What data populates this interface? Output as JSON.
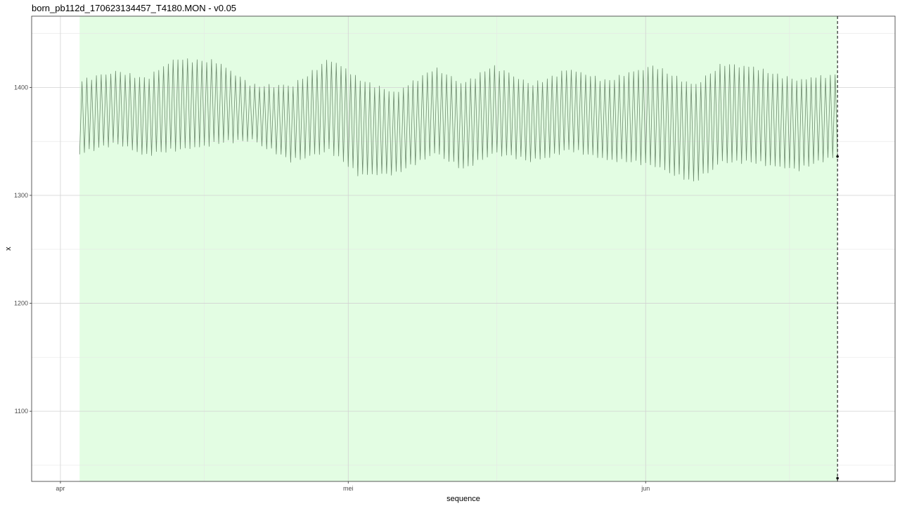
{
  "title": "born_pb112d_170623134457_T4180.MON - v0.05",
  "colors": {
    "panel_background": "#ffffff",
    "highlight_band": "#e3fde3",
    "grid_major": "#d2d2d2",
    "grid_minor": "#e6e6e6",
    "series_line": "#6e8a6e",
    "marker_line": "#000000"
  },
  "chart_data": {
    "type": "line",
    "title": "born_pb112d_170623134457_T4180.MON - v0.05",
    "xlabel": "sequence",
    "ylabel": "x",
    "x_axis": {
      "type": "date",
      "range": [
        "2017-03-29",
        "2017-06-27"
      ],
      "ticks": [
        {
          "date": "2017-04-01",
          "label": "apr"
        },
        {
          "date": "2017-05-01",
          "label": "mei"
        },
        {
          "date": "2017-06-01",
          "label": "jun"
        }
      ]
    },
    "y_axis": {
      "range": [
        1035,
        1466
      ],
      "ticks": [
        1100,
        1200,
        1300,
        1400
      ],
      "minor_ticks": [
        1050,
        1150,
        1250,
        1350,
        1450
      ]
    },
    "grid": true,
    "legend": "none",
    "highlight_band": {
      "start": "2017-04-03",
      "end": "2017-06-21"
    },
    "vertical_marker": {
      "date": "2017-06-21",
      "style": "dashed",
      "points_y": [
        1336,
        1038
      ]
    },
    "series": [
      {
        "color": "#6e8a6e",
        "cycles_per_day": 2,
        "start": "2017-04-03",
        "end": "2017-06-21",
        "envelope": {
          "dates": [
            "2017-04-03",
            "2017-04-07",
            "2017-04-10",
            "2017-04-13",
            "2017-04-17",
            "2017-04-21",
            "2017-04-25",
            "2017-04-29",
            "2017-05-02",
            "2017-05-06",
            "2017-05-10",
            "2017-05-13",
            "2017-05-16",
            "2017-05-20",
            "2017-05-24",
            "2017-05-28",
            "2017-06-02",
            "2017-06-06",
            "2017-06-09",
            "2017-06-13",
            "2017-06-17",
            "2017-06-21"
          ],
          "high": [
            1408,
            1416,
            1410,
            1428,
            1426,
            1404,
            1402,
            1428,
            1410,
            1396,
            1420,
            1404,
            1422,
            1404,
            1418,
            1408,
            1422,
            1402,
            1424,
            1418,
            1408,
            1414
          ],
          "low": [
            1338,
            1346,
            1336,
            1340,
            1346,
            1350,
            1330,
            1340,
            1318,
            1318,
            1338,
            1322,
            1338,
            1330,
            1340,
            1332,
            1326,
            1310,
            1330,
            1328,
            1322,
            1336
          ]
        }
      }
    ]
  }
}
